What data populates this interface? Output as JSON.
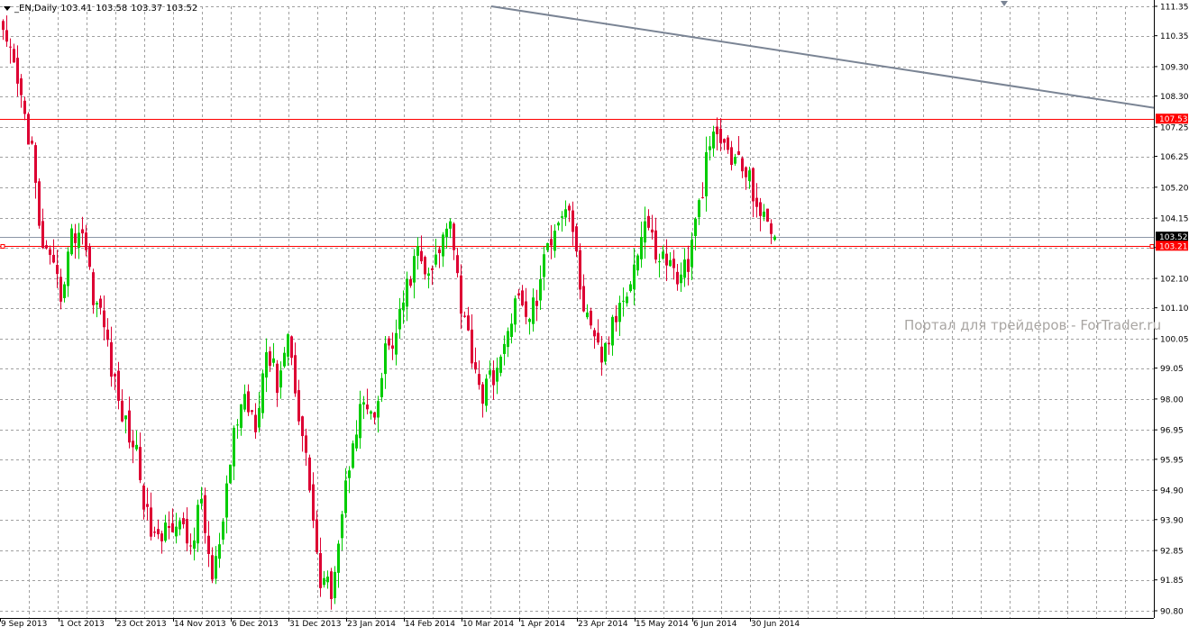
{
  "header": {
    "symbol": "_EN,Daily",
    "open": "103.41",
    "high": "103.58",
    "low": "103.37",
    "close": "103.52"
  },
  "watermark": "Портал для трейдеров - ForTrader.ru",
  "colors": {
    "bull": "#00cc00",
    "bear": "#dd0033",
    "grid": "#a0a0a0",
    "level_line": "#ff0000",
    "trend_line": "#7a8494",
    "price_line": "#8c96a6"
  },
  "chart_data": {
    "type": "candlestick",
    "title": "",
    "xlabel": "",
    "ylabel": "",
    "ylim": [
      90.8,
      111.35
    ],
    "y_ticks": [
      "111.35",
      "110.35",
      "109.30",
      "108.30",
      "107.25",
      "106.25",
      "105.20",
      "104.15",
      "103.15",
      "102.10",
      "101.10",
      "100.05",
      "99.05",
      "98.00",
      "96.95",
      "95.95",
      "94.90",
      "93.90",
      "92.85",
      "91.85",
      "90.80"
    ],
    "x_ticks": [
      "9 Sep 2013",
      "1 Oct 2013",
      "23 Oct 2013",
      "14 Nov 2013",
      "6 Dec 2013",
      "31 Dec 2013",
      "23 Jan 2014",
      "14 Feb 2014",
      "10 Mar 2014",
      "1 Apr 2014",
      "23 Apr 2014",
      "15 May 2014",
      "6 Jun 2014",
      "30 Jun 2014"
    ],
    "grid": true,
    "horizontal_levels": [
      {
        "label": "107.53",
        "value": 107.53
      },
      {
        "label": "103.21",
        "value": 103.21
      }
    ],
    "current_price": {
      "label": "103.52",
      "value": 103.52
    },
    "trend_line": {
      "from": {
        "bar": 137,
        "price": 111.35
      },
      "to": {
        "bar": 321,
        "price": 107.9
      }
    },
    "close_path": [
      [
        0,
        110.2
      ],
      [
        3,
        109.2
      ],
      [
        6,
        107.6
      ],
      [
        8,
        106.5
      ],
      [
        10,
        103.7
      ],
      [
        13,
        102.5
      ],
      [
        16,
        101.6
      ],
      [
        19,
        103.5
      ],
      [
        22,
        103.8
      ],
      [
        25,
        101.6
      ],
      [
        28,
        100.5
      ],
      [
        31,
        98.4
      ],
      [
        34,
        97.1
      ],
      [
        37,
        96.2
      ],
      [
        40,
        93.9
      ],
      [
        43,
        93.0
      ],
      [
        46,
        94.0
      ],
      [
        49,
        93.6
      ],
      [
        52,
        93.0
      ],
      [
        55,
        94.5
      ],
      [
        58,
        91.8
      ],
      [
        61,
        93.6
      ],
      [
        64,
        96.9
      ],
      [
        67,
        98.1
      ],
      [
        70,
        97.3
      ],
      [
        73,
        99.7
      ],
      [
        76,
        98.6
      ],
      [
        79,
        100.2
      ],
      [
        82,
        97.6
      ],
      [
        85,
        95.1
      ],
      [
        88,
        91.6
      ],
      [
        91,
        91.6
      ],
      [
        94,
        94.1
      ],
      [
        97,
        96.8
      ],
      [
        100,
        97.9
      ],
      [
        103,
        97.0
      ],
      [
        106,
        99.6
      ],
      [
        109,
        100.1
      ],
      [
        112,
        101.8
      ],
      [
        115,
        103.0
      ],
      [
        118,
        102.0
      ],
      [
        121,
        103.0
      ],
      [
        124,
        104.4
      ],
      [
        127,
        101.2
      ],
      [
        130,
        99.6
      ],
      [
        133,
        98.1
      ],
      [
        136,
        98.9
      ],
      [
        139,
        99.5
      ],
      [
        142,
        101.6
      ],
      [
        145,
        100.7
      ],
      [
        148,
        101.4
      ],
      [
        151,
        103.2
      ],
      [
        154,
        104.3
      ],
      [
        157,
        104.6
      ],
      [
        160,
        101.8
      ],
      [
        163,
        100.1
      ],
      [
        166,
        99.4
      ],
      [
        169,
        100.4
      ],
      [
        172,
        101.6
      ],
      [
        175,
        102.5
      ],
      [
        178,
        104.1
      ],
      [
        181,
        103.0
      ],
      [
        184,
        102.7
      ],
      [
        187,
        102.2
      ],
      [
        190,
        102.6
      ],
      [
        193,
        104.5
      ],
      [
        196,
        106.7
      ],
      [
        199,
        106.8
      ],
      [
        202,
        106.2
      ],
      [
        205,
        105.9
      ],
      [
        208,
        105.1
      ],
      [
        211,
        104.0
      ],
      [
        214,
        103.52
      ]
    ],
    "ohlc": []
  }
}
